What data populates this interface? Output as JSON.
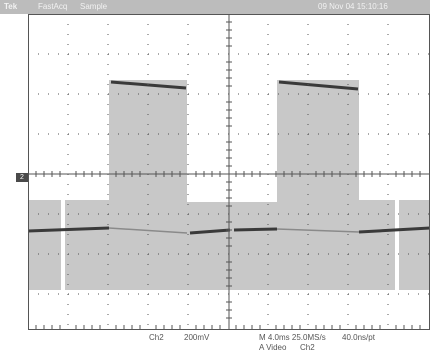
{
  "status_bar": {
    "brand": "Tek",
    "acq_mode": "FastAcq",
    "sample_mode": "Sample",
    "datetime": "09 Nov 04 15:10:16"
  },
  "channel_marker": "2",
  "readouts": {
    "channel": "Ch2",
    "volts_per_div": "200mV",
    "timebase": "M 4.0ms 25.0MS/s",
    "sample_interval": "40.0ns/pt",
    "trigger": "A Video",
    "trigger_source": "Ch2"
  },
  "colors": {
    "status_bar_bg": "#bcbcbc",
    "grid": "#555555",
    "waveform_envelope": "#c8c8c8",
    "waveform_trace": "#3a3a3a"
  }
}
